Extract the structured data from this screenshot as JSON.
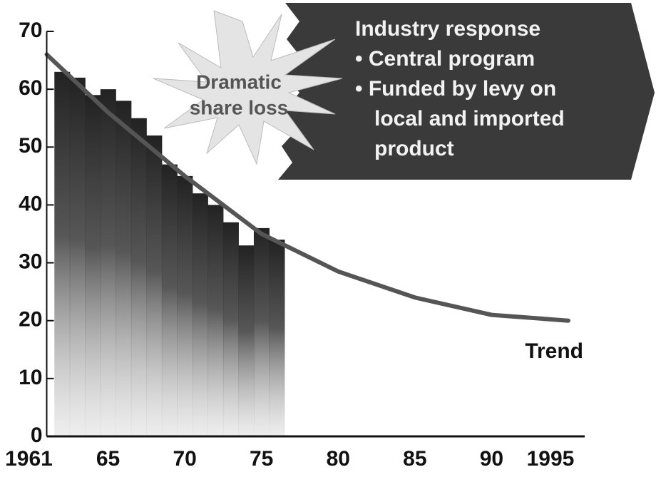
{
  "chart_data": {
    "type": "bar",
    "bars": {
      "x": [
        1962,
        1963,
        1964,
        1965,
        1966,
        1967,
        1968,
        1969,
        1970,
        1971,
        1972,
        1973,
        1974,
        1975,
        1976
      ],
      "values": [
        63,
        62,
        59,
        60,
        58,
        55,
        52,
        47,
        45,
        42,
        40,
        37,
        33,
        36,
        34
      ],
      "color": "#2a2a2a"
    },
    "trend": {
      "x": [
        1961,
        1965,
        1970,
        1975,
        1980,
        1985,
        1990,
        1995
      ],
      "values": [
        66,
        56,
        45,
        35,
        28.5,
        24,
        21,
        20
      ],
      "color": "#555555",
      "label": "Trend"
    },
    "annotations": {
      "burst": [
        "Dramatic",
        "share loss"
      ],
      "callout": [
        "Industry response",
        "• Central program",
        "• Funded by levy on",
        "local and imported",
        "product"
      ]
    },
    "xlim": [
      1960,
      1997
    ],
    "xticks": [
      1961,
      {
        "value": 1965,
        "label": "65"
      },
      {
        "value": 1970,
        "label": "70"
      },
      {
        "value": 1975,
        "label": "75"
      },
      {
        "value": 1980,
        "label": "80"
      },
      {
        "value": 1985,
        "label": "85"
      },
      {
        "value": 1990,
        "label": "90"
      },
      1995
    ],
    "ylim": [
      0,
      70
    ],
    "yticks": [
      0,
      10,
      20,
      30,
      40,
      50,
      60,
      70
    ]
  }
}
